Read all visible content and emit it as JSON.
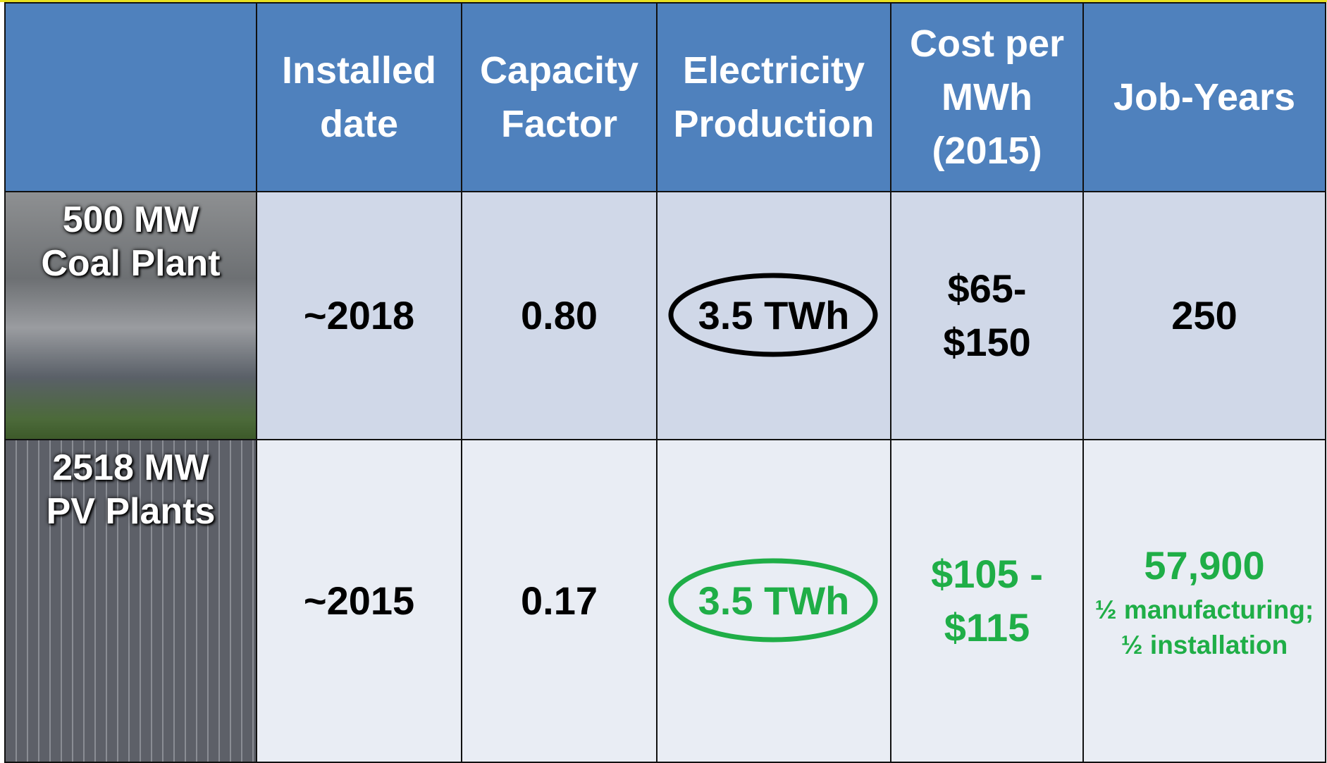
{
  "table": {
    "header": [
      [
        "Installed",
        "date"
      ],
      [
        "Capacity",
        "Factor"
      ],
      [
        "Electricity",
        "Production"
      ],
      [
        "Cost per",
        "MWh",
        "(2015)"
      ],
      [
        "Job-Years"
      ]
    ],
    "rows": [
      {
        "label": [
          "500 MW",
          "Coal Plant"
        ],
        "cells": [
          [
            "~2018"
          ],
          [
            "0.80"
          ],
          [
            "3.5 TWh"
          ],
          [
            "$65-",
            "$150"
          ],
          [
            "250"
          ]
        ]
      },
      {
        "label": [
          "2518 MW",
          "PV Plants"
        ],
        "cells": [
          [
            "~2015"
          ],
          [
            "0.17"
          ],
          [
            "3.5 TWh"
          ],
          [
            "$105 -",
            "$115"
          ],
          [
            "57,900",
            "½ manufacturing;",
            "½ installation"
          ]
        ]
      }
    ]
  }
}
